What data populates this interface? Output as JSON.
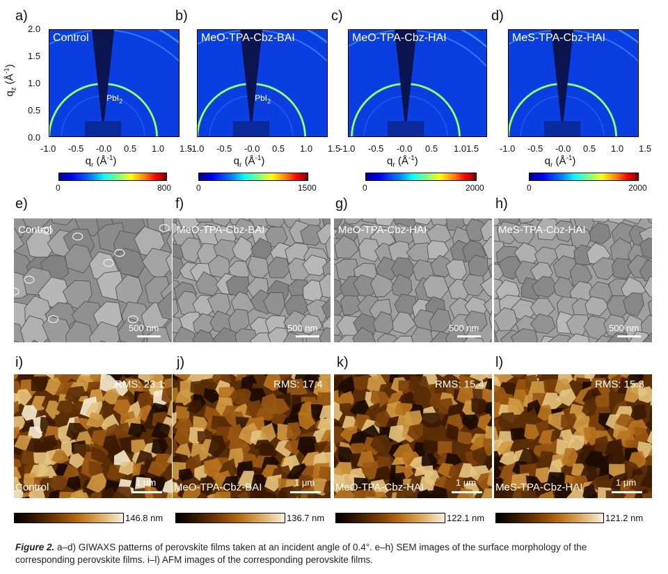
{
  "panel_letters": [
    "a)",
    "b)",
    "c)",
    "d)",
    "e)",
    "f)",
    "g)",
    "h)",
    "i)",
    "j)",
    "k)",
    "l)"
  ],
  "giwaxs": {
    "titles": [
      "Control",
      "MeO-TPA-Cbz-BAI",
      "MeO-TPA-Cbz-HAI",
      "MeS-TPA-Cbz-HAI"
    ],
    "pbi_label": "PbI",
    "pbi_sub": "2",
    "y_axis_label": "q",
    "y_axis_sub": "z",
    "y_axis_unit": " (Å",
    "y_ticks": [
      "2.0",
      "1.5",
      "1.0",
      "0.5",
      "0.0"
    ],
    "x_axis_label": "q",
    "x_axis_sub": "r",
    "x_axis_unit": " (Å",
    "unit_exp": "-1",
    "unit_close": ")",
    "x_ticks": [
      [
        "-1.0",
        "-0.5",
        "-0.0",
        "0.5",
        "1.0",
        "1.5"
      ],
      [
        "-1.0",
        "-0.5",
        "-0.0",
        "0.5",
        "1.0",
        "1.5"
      ],
      [
        "-1.0",
        "-0.5",
        "-0.0",
        "0.5",
        "1.01.5"
      ],
      [
        "-1.0",
        "-0.5",
        "-0.0",
        "0.5",
        "1.0",
        "1.5"
      ]
    ],
    "colorbar_min": [
      "0",
      "0",
      "0",
      "0"
    ],
    "colorbar_max": [
      "800",
      "1500",
      "2000",
      "2000"
    ]
  },
  "sem": {
    "labels": [
      "Control",
      "MeO-TPA-Cbz-BAI",
      "MeO-TPA-Cbz-HAI",
      "MeS-TPA-Cbz-HAI"
    ],
    "scale": "500 nm"
  },
  "afm": {
    "labels": [
      "Control",
      "MeO-TPA-Cbz-BAI",
      "MeO-TPA-Cbz-HAI",
      "MeS-TPA-Cbz-HAI"
    ],
    "rms": [
      "RMS: 23.1",
      "RMS: 17.4",
      "RMS: 15.4",
      "RMS: 15.3"
    ],
    "scale": "1 μm",
    "colorbar_max": [
      "146.8 nm",
      "136.7 nm",
      "122.1 nm",
      "121.2 nm"
    ]
  },
  "caption": {
    "figure_label": "Figure 2.",
    "text_line1": " a–d) GIWAXS patterns of perovskite films taken at an incident angle of 0.4°. e–h) SEM images of the surface morphology of the",
    "text_line2": "corresponding perovskite films. i–l) AFM images of the corresponding perovskite films."
  },
  "colors": {
    "giwaxs_background": "#0a3ee0",
    "sem_gray": "#9a9a9a",
    "afm_brown": "#8a4a0a"
  }
}
